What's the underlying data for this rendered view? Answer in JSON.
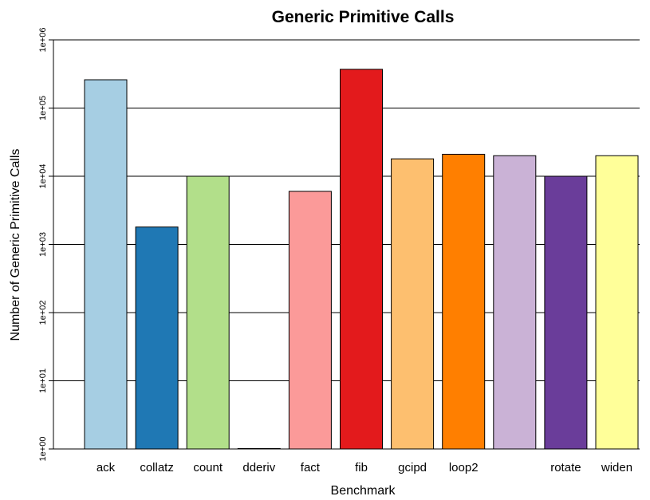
{
  "chart_data": {
    "type": "bar",
    "title": "Generic Primitive Calls",
    "xlabel": "Benchmark",
    "ylabel": "Number of Generic Primitive Calls",
    "yscale": "log",
    "ylim": [
      1,
      1000000
    ],
    "yticks": [
      1,
      10,
      100,
      1000,
      10000,
      100000,
      1000000
    ],
    "ytick_labels": [
      "1e+00",
      "1e+01",
      "1e+02",
      "1e+03",
      "1e+04",
      "1e+05",
      "1e+06"
    ],
    "grid": true,
    "categories": [
      "ack",
      "collatz",
      "count",
      "dderiv",
      "fact",
      "fib",
      "gcipd",
      "loop2",
      "",
      "rotate",
      "widen"
    ],
    "values": [
      260000,
      1800,
      10000,
      1,
      6000,
      370000,
      18000,
      21000,
      20000,
      10000,
      20000
    ],
    "colors": [
      "#A6CEE3",
      "#1F78B4",
      "#B2DF8A",
      "#33A02C",
      "#FB9A99",
      "#E31A1C",
      "#FDBF6F",
      "#FF7F00",
      "#CAB2D6",
      "#6A3D9A",
      "#FFFF99"
    ]
  }
}
